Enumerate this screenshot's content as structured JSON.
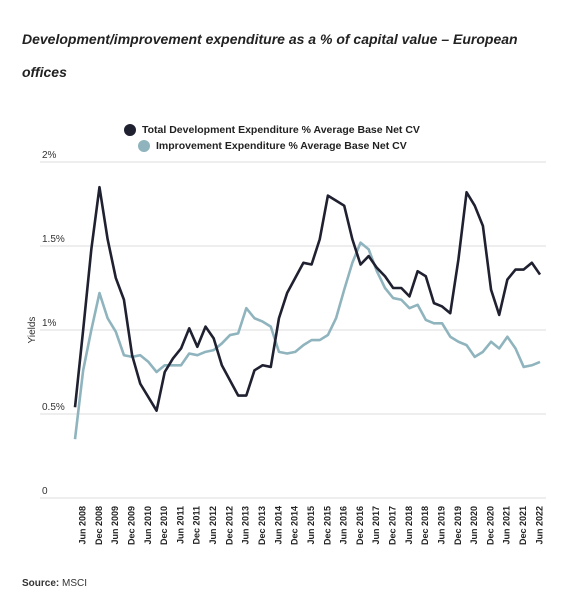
{
  "chart_data": {
    "type": "line",
    "title": "Development/improvement expenditure as a % of capital value – European offices",
    "y_label": "Yields",
    "source_label": "Source:",
    "source": "MSCI",
    "categories": [
      null,
      "Jun 2008",
      null,
      "Dec 2008",
      null,
      "Jun 2009",
      null,
      "Dec 2009",
      null,
      "Jun 2010",
      null,
      "Dec 2010",
      null,
      "Jun 2011",
      null,
      "Dec 2011",
      null,
      "Jun 2012",
      null,
      "Dec 2012",
      null,
      "Jun 2013",
      null,
      "Dec 2013",
      null,
      "Jun 2014",
      null,
      "Dec 2014",
      null,
      "Jun 2015",
      null,
      "Dec 2015",
      null,
      "Jun 2016",
      null,
      "Dec 2016",
      null,
      "Jun 2017",
      null,
      "Dec 2017",
      null,
      "Jun 2018",
      null,
      "Dec 2018",
      null,
      "Jun 2019",
      null,
      "Dec 2019",
      null,
      "Jun 2020",
      null,
      "Dec 2020",
      null,
      "Jun 2021",
      null,
      "Dec 2021",
      null,
      "Jun 2022"
    ],
    "series": [
      {
        "name": "Total Development Expenditure % Average Base Net CV",
        "color": "#1f2030",
        "values": [
          0.54,
          1.0,
          1.48,
          1.85,
          1.54,
          1.31,
          1.18,
          0.85,
          0.68,
          0.6,
          0.52,
          0.75,
          0.83,
          0.89,
          1.01,
          0.9,
          1.02,
          0.95,
          0.79,
          0.7,
          0.61,
          0.61,
          0.76,
          0.79,
          0.78,
          1.07,
          1.22,
          1.31,
          1.4,
          1.39,
          1.54,
          1.8,
          1.77,
          1.74,
          1.54,
          1.39,
          1.44,
          1.37,
          1.32,
          1.25,
          1.25,
          1.2,
          1.35,
          1.32,
          1.16,
          1.14,
          1.1,
          1.42,
          1.82,
          1.74,
          1.62,
          1.24,
          1.09,
          1.3,
          1.36,
          1.36,
          1.4,
          1.33
        ]
      },
      {
        "name": "Improvement Expenditure % Average Base Net CV",
        "color": "#8fb4be",
        "values": [
          0.35,
          0.76,
          1.0,
          1.22,
          1.07,
          0.99,
          0.85,
          0.84,
          0.85,
          0.81,
          0.75,
          0.79,
          0.79,
          0.79,
          0.86,
          0.85,
          0.87,
          0.88,
          0.92,
          0.97,
          0.98,
          1.13,
          1.07,
          1.05,
          1.02,
          0.87,
          0.86,
          0.87,
          0.91,
          0.94,
          0.94,
          0.97,
          1.07,
          1.24,
          1.4,
          1.52,
          1.48,
          1.35,
          1.25,
          1.19,
          1.18,
          1.13,
          1.15,
          1.06,
          1.04,
          1.04,
          0.96,
          0.93,
          0.91,
          0.84,
          0.87,
          0.93,
          0.89,
          0.96,
          0.89,
          0.78,
          0.79,
          0.81
        ]
      }
    ],
    "ylim": [
      0,
      2
    ],
    "yticks": [
      0,
      {
        "value": 0.5,
        "label": "0.5%"
      },
      {
        "value": 1,
        "label": "1%"
      },
      {
        "value": 1.5,
        "label": "1.5%"
      },
      {
        "value": 2,
        "label": "2%"
      }
    ],
    "grid": true
  }
}
